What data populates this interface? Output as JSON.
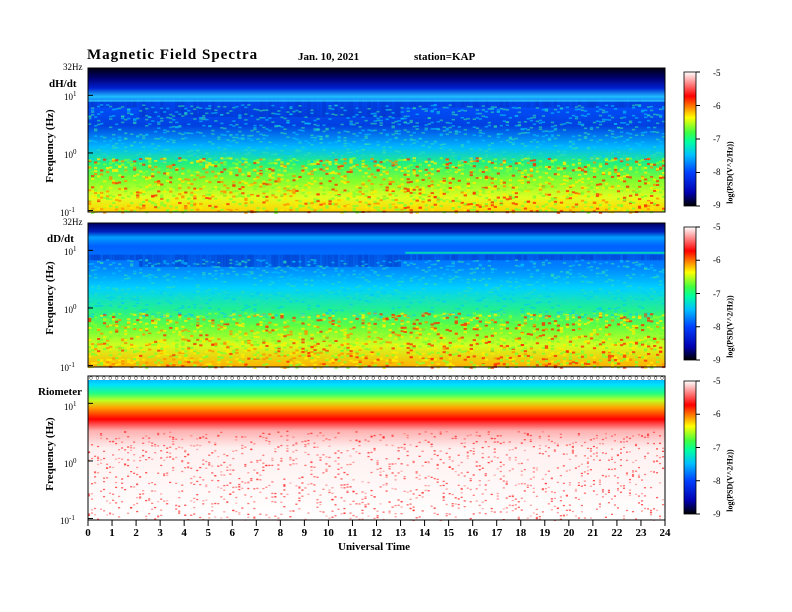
{
  "header": {
    "title": "Magnetic  Field  Spectra",
    "date": "Jan. 10, 2021",
    "station": "station=KAP"
  },
  "chart_data": [
    {
      "type": "heatmap",
      "panel_label": "dH/dt",
      "ylabel": "Frequency (Hz)",
      "yscale": "log",
      "y_ticks": [
        "10",
        "10",
        "10"
      ],
      "y_tick_exps": [
        "1",
        "0",
        "-1"
      ],
      "y_top_label": "32Hz",
      "x_range": [
        0,
        24
      ],
      "colorbar": {
        "ticks": [
          "-5",
          "-6",
          "-7",
          "-8",
          "-9"
        ],
        "label": "log(PSD(V^2/Hz))",
        "range": [
          -9,
          -5
        ]
      }
    },
    {
      "type": "heatmap",
      "panel_label": "dD/dt",
      "ylabel": "Frequency (Hz)",
      "yscale": "log",
      "y_ticks": [
        "10",
        "10",
        "10"
      ],
      "y_tick_exps": [
        "1",
        "0",
        "-1"
      ],
      "y_top_label": "32Hz",
      "x_range": [
        0,
        24
      ],
      "colorbar": {
        "ticks": [
          "-5",
          "-6",
          "-7",
          "-8",
          "-9"
        ],
        "label": "log(PSD(V^2/Hz))",
        "range": [
          -9,
          -5
        ]
      }
    },
    {
      "type": "heatmap",
      "panel_label": "Riometer",
      "ylabel": "Frequency (Hz)",
      "yscale": "log",
      "y_ticks": [
        "10",
        "10",
        "10"
      ],
      "y_tick_exps": [
        "1",
        "0",
        "-1"
      ],
      "y_top_label": "",
      "x_range": [
        0,
        24
      ],
      "colorbar": {
        "ticks": [
          "-5",
          "-6",
          "-7",
          "-8",
          "-9"
        ],
        "label": "log(PSD(V^2/Hz))",
        "range": [
          -9,
          -5
        ]
      }
    }
  ],
  "x_axis": {
    "label": "Universal Time",
    "ticks": [
      "0",
      "1",
      "2",
      "3",
      "4",
      "5",
      "6",
      "7",
      "8",
      "9",
      "10",
      "11",
      "12",
      "13",
      "14",
      "15",
      "16",
      "17",
      "18",
      "19",
      "20",
      "21",
      "22",
      "23",
      "24"
    ]
  },
  "colors": {
    "scale": [
      "#000000",
      "#0000b0",
      "#0040ff",
      "#00c0ff",
      "#00ffa0",
      "#40ff40",
      "#ffff00",
      "#ff8000",
      "#ff0000",
      "#ffffff"
    ]
  }
}
